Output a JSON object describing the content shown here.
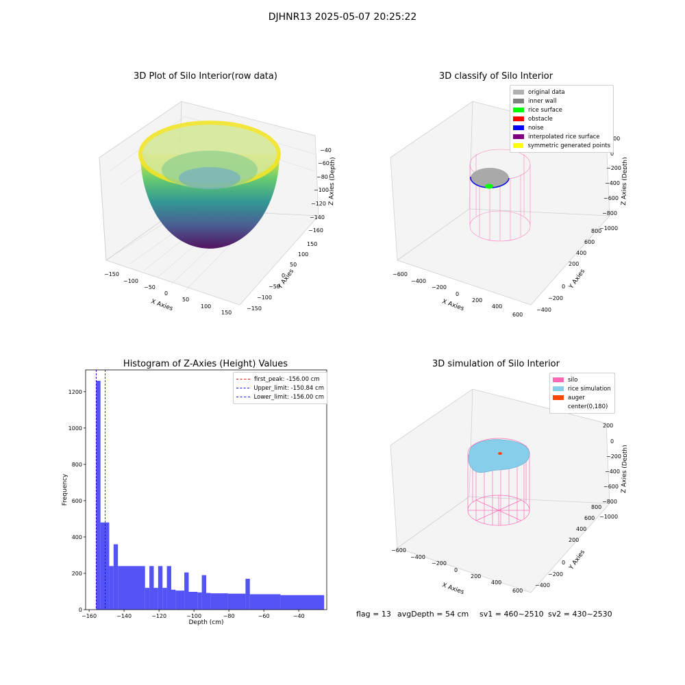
{
  "suptitle": "DJHNR13 2025-05-07 20:25:22",
  "panel1": {
    "title": "3D Plot of Silo Interior(row data)",
    "xlabel": "X Axies",
    "ylabel": "Y Axies",
    "zlabel": "Z Axies (Depth)",
    "xticks": [
      "−150",
      "−100",
      "−50",
      "0",
      "50",
      "100",
      "150"
    ],
    "yticks": [
      "−150",
      "−100",
      "−50",
      "0",
      "50",
      "100",
      "150"
    ],
    "zticks": [
      "−40",
      "−60",
      "−80",
      "−100",
      "−120",
      "−140",
      "−160"
    ]
  },
  "panel2": {
    "title": "3D classify of Silo Interior",
    "xlabel": "X Axies",
    "ylabel": "Y Axies",
    "zlabel": "Z Axies (Depth)",
    "xticks": [
      "−600",
      "−400",
      "−200",
      "0",
      "200",
      "400",
      "600"
    ],
    "yticks": [
      "−400",
      "−200",
      "0",
      "200",
      "400",
      "600",
      "800"
    ],
    "zticks": [
      "200",
      "0",
      "−200",
      "−400",
      "−600",
      "−800",
      "−1000"
    ],
    "legend": [
      {
        "label": "original data",
        "color": "#b0b0b0"
      },
      {
        "label": "inner wall",
        "color": "#808080"
      },
      {
        "label": "rice surface",
        "color": "#00ff00"
      },
      {
        "label": "obstacle",
        "color": "#ff0000"
      },
      {
        "label": "noise",
        "color": "#0000ff"
      },
      {
        "label": "interpolated rice surface",
        "color": "#800080"
      },
      {
        "label": "symmetric generated points",
        "color": "#ffff00"
      }
    ]
  },
  "panel4": {
    "title": "3D simulation of Silo Interior",
    "xlabel": "X Axies",
    "ylabel": "Y Axies",
    "zlabel": "Z Axies (Depth)",
    "xticks": [
      "−600",
      "−400",
      "−200",
      "0",
      "200",
      "400",
      "600"
    ],
    "yticks": [
      "−400",
      "−200",
      "0",
      "200",
      "400",
      "600",
      "800"
    ],
    "zticks": [
      "200",
      "0",
      "−200",
      "−400",
      "−600",
      "−800",
      "−1000"
    ],
    "legend": [
      {
        "label": "silo",
        "color": "#ff69b4"
      },
      {
        "label": "rice simulation",
        "color": "#87ceeb"
      },
      {
        "label": "auger",
        "color": "#ff4500"
      },
      {
        "label": "center(0,180)",
        "color": ""
      }
    ]
  },
  "footer": {
    "flag": "flag = 13",
    "avg": "avgDepth = 54 cm",
    "sv1": "sv1 = 460~2510",
    "sv2": "sv2 = 430~2530"
  },
  "chart_data": [
    {
      "type": "scatter",
      "title": "3D Plot of Silo Interior(row data)",
      "xlabel": "X Axies",
      "ylabel": "Y Axies",
      "zlabel": "Z Axies (Depth)",
      "xlim": [
        -160,
        160
      ],
      "ylim": [
        -160,
        160
      ],
      "zlim": [
        -165,
        -30
      ],
      "note_colormap": "viridis"
    },
    {
      "type": "scatter",
      "title": "3D classify of Silo Interior",
      "xlabel": "X Axies",
      "ylabel": "Y Axies",
      "zlabel": "Z Axies (Depth)",
      "xlim": [
        -650,
        650
      ],
      "ylim": [
        -450,
        850
      ],
      "zlim": [
        -1050,
        250
      ]
    },
    {
      "type": "bar",
      "title": "Histogram of Z-Axies (Height) Values",
      "xlabel": "Depth (cm)",
      "ylabel": "Frequency",
      "xlim": [
        -162,
        -24
      ],
      "ylim": [
        0,
        1320
      ],
      "xticks": [
        -160,
        -140,
        -120,
        -100,
        -80,
        -60,
        -40
      ],
      "yticks": [
        0,
        200,
        400,
        600,
        800,
        1000,
        1200
      ],
      "bins": [
        {
          "x0": -156,
          "x1": -153.5,
          "value": 1260
        },
        {
          "x0": -153.5,
          "x1": -151,
          "value": 480
        },
        {
          "x0": -151,
          "x1": -148.5,
          "value": 480
        },
        {
          "x0": -148.5,
          "x1": -146,
          "value": 240
        },
        {
          "x0": -146,
          "x1": -143.5,
          "value": 360
        },
        {
          "x0": -143.5,
          "x1": -128,
          "value": 240
        },
        {
          "x0": -128,
          "x1": -125.5,
          "value": 120
        },
        {
          "x0": -125.5,
          "x1": -123,
          "value": 240
        },
        {
          "x0": -123,
          "x1": -120.5,
          "value": 120
        },
        {
          "x0": -120.5,
          "x1": -118,
          "value": 240
        },
        {
          "x0": -118,
          "x1": -115.5,
          "value": 120
        },
        {
          "x0": -115.5,
          "x1": -113,
          "value": 240
        },
        {
          "x0": -113,
          "x1": -110.5,
          "value": 110
        },
        {
          "x0": -110.5,
          "x1": -105.5,
          "value": 105
        },
        {
          "x0": -105.5,
          "x1": -103,
          "value": 205
        },
        {
          "x0": -103,
          "x1": -98,
          "value": 98
        },
        {
          "x0": -98,
          "x1": -95.5,
          "value": 95
        },
        {
          "x0": -95.5,
          "x1": -93,
          "value": 190
        },
        {
          "x0": -93,
          "x1": -90.5,
          "value": 92
        },
        {
          "x0": -90.5,
          "x1": -80.5,
          "value": 90
        },
        {
          "x0": -80.5,
          "x1": -70.5,
          "value": 88
        },
        {
          "x0": -70.5,
          "x1": -68,
          "value": 170
        },
        {
          "x0": -68,
          "x1": -50.5,
          "value": 85
        },
        {
          "x0": -50.5,
          "x1": -25.5,
          "value": 80
        }
      ],
      "lines": [
        {
          "label": "first_peak: -156.00 cm",
          "x": -156.0,
          "color": "#ff0000"
        },
        {
          "label": "Upper_limit: -150.84 cm",
          "x": -150.84,
          "color": "#0000ff"
        },
        {
          "label": "Lower_limit: -156.00 cm",
          "x": -156.0,
          "color": "#0000ff"
        }
      ],
      "bar_color": "#4a4af5"
    },
    {
      "type": "scatter",
      "title": "3D simulation of Silo Interior",
      "xlabel": "X Axies",
      "ylabel": "Y Axies",
      "zlabel": "Z Axies (Depth)",
      "xlim": [
        -650,
        650
      ],
      "ylim": [
        -450,
        850
      ],
      "zlim": [
        -1050,
        250
      ]
    }
  ]
}
